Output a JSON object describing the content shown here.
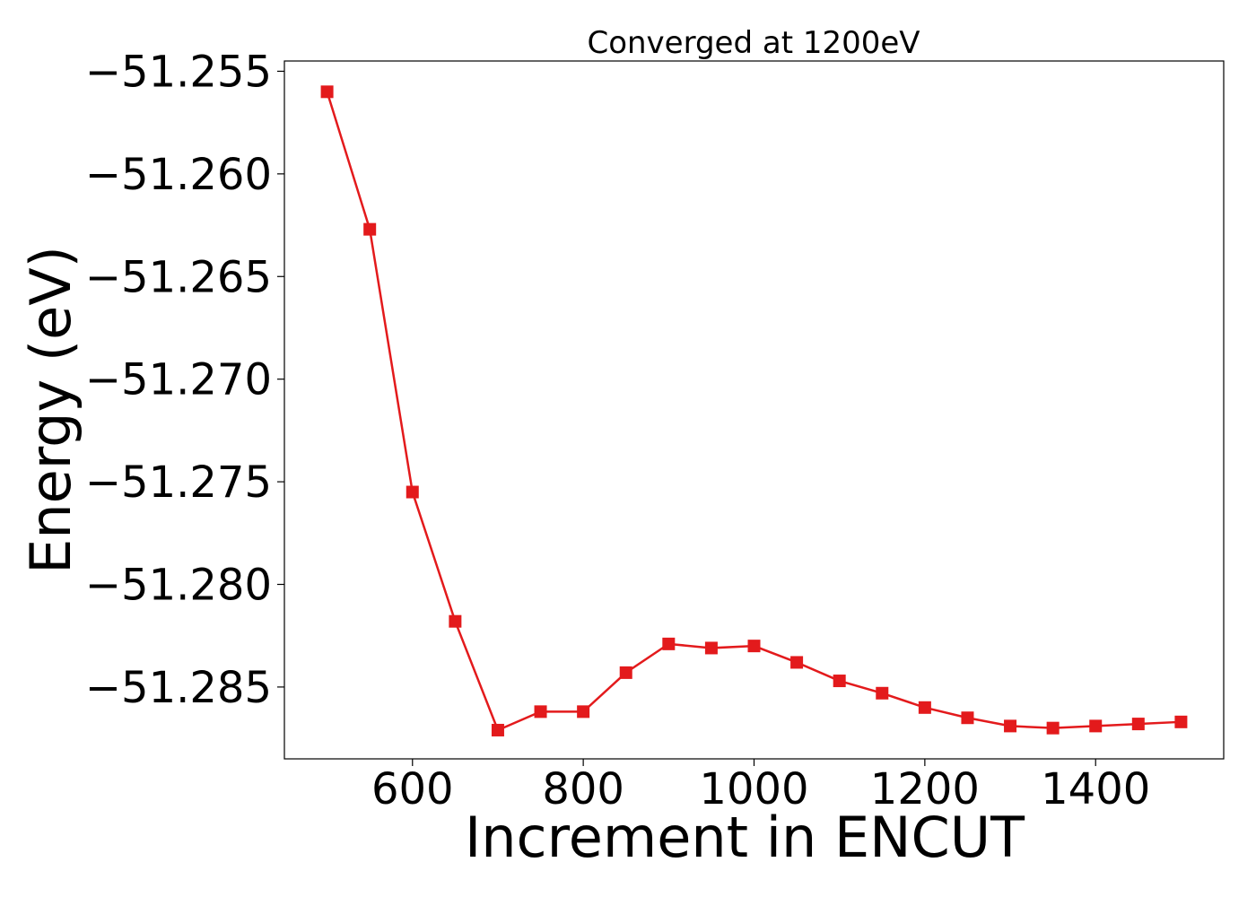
{
  "chart_data": {
    "type": "line",
    "title": "Converged at 1200eV",
    "xlabel": "Increment in ENCUT",
    "ylabel": "Energy (eV)",
    "xlim": [
      450,
      1550
    ],
    "ylim": [
      -51.2885,
      -51.2545
    ],
    "xticks": [
      600,
      800,
      1000,
      1200,
      1400
    ],
    "yticks": [
      -51.255,
      -51.26,
      -51.265,
      -51.27,
      -51.275,
      -51.28,
      -51.285
    ],
    "ytick_labels": [
      "−51.255",
      "−51.260",
      "−51.265",
      "−51.270",
      "−51.275",
      "−51.280",
      "−51.285"
    ],
    "grid": false,
    "series": [
      {
        "color": "#e31a1c",
        "marker": "square",
        "x": [
          500,
          550,
          600,
          650,
          700,
          750,
          800,
          850,
          900,
          950,
          1000,
          1050,
          1100,
          1150,
          1200,
          1250,
          1300,
          1350,
          1400,
          1450,
          1500
        ],
        "y": [
          -51.256,
          -51.2627,
          -51.2755,
          -51.2818,
          -51.2871,
          -51.2862,
          -51.2862,
          -51.2843,
          -51.2829,
          -51.2831,
          -51.283,
          -51.2838,
          -51.2847,
          -51.2853,
          -51.286,
          -51.2865,
          -51.2869,
          -51.287,
          -51.2869,
          -51.2868,
          -51.2867
        ]
      }
    ]
  }
}
